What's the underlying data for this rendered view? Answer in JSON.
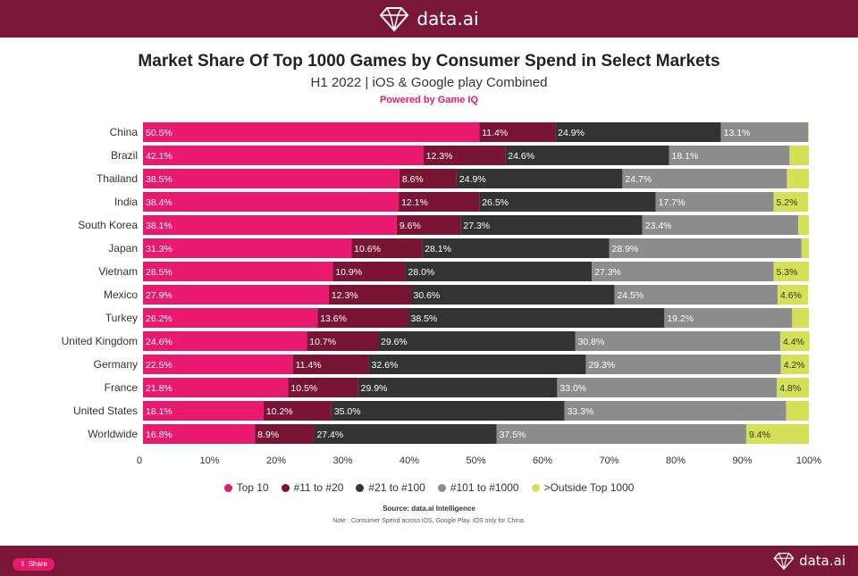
{
  "header": {
    "brand": "data.ai"
  },
  "footer": {
    "share_label": "Share",
    "brand": "data.ai"
  },
  "colors": {
    "brand_bar": "#7a1738",
    "accent": "#e8196e",
    "series": [
      "#e8196e",
      "#7a1435",
      "#333333",
      "#8c8c8c",
      "#d4e157"
    ]
  },
  "chart_data": {
    "type": "bar",
    "orientation": "horizontal",
    "stacked": true,
    "title": "Market Share Of Top 1000 Games by Consumer Spend in Select Markets",
    "subtitle": "H1 2022 | iOS & Google play Combined",
    "powered_by": "Powered by Game IQ",
    "categories": [
      "China",
      "Brazil",
      "Thailand",
      "India",
      "South Korea",
      "Japan",
      "Vietnam",
      "Mexico",
      "Turkey",
      "United Kingdom",
      "Germany",
      "France",
      "United States",
      "Worldwide"
    ],
    "series": [
      {
        "name": "Top 10",
        "values": [
          50.5,
          42.1,
          38.5,
          38.4,
          38.1,
          31.3,
          28.5,
          27.9,
          26.2,
          24.6,
          22.5,
          21.8,
          18.1,
          16.8
        ]
      },
      {
        "name": "#11 to #20",
        "values": [
          11.4,
          12.3,
          8.6,
          12.1,
          9.6,
          10.6,
          10.9,
          12.3,
          13.6,
          10.7,
          11.4,
          10.5,
          10.2,
          8.9
        ]
      },
      {
        "name": "#21 to #100",
        "values": [
          24.9,
          24.6,
          24.9,
          26.5,
          27.3,
          28.1,
          28.0,
          30.6,
          38.5,
          29.6,
          32.6,
          29.9,
          35.0,
          27.4
        ]
      },
      {
        "name": "#101 to #1000",
        "values": [
          13.1,
          18.1,
          24.7,
          17.7,
          23.4,
          28.9,
          27.3,
          24.5,
          19.2,
          30.8,
          29.3,
          33.0,
          33.3,
          37.5
        ]
      },
      {
        "name": ">Outside Top 1000",
        "values": [
          null,
          null,
          null,
          5.2,
          null,
          null,
          5.3,
          4.6,
          null,
          4.4,
          4.2,
          4.8,
          null,
          9.4
        ]
      }
    ],
    "xlim": [
      0,
      100
    ],
    "x_ticks": [
      "0",
      "10%",
      "20%",
      "30%",
      "40%",
      "50%",
      "60%",
      "70%",
      "80%",
      "90%",
      "100%"
    ],
    "legend_position": "bottom",
    "grid": false
  },
  "source": "Source: data.ai Intelligence",
  "note": "Note : Consumer Spend across iOS, Google Play. iOS only for China."
}
